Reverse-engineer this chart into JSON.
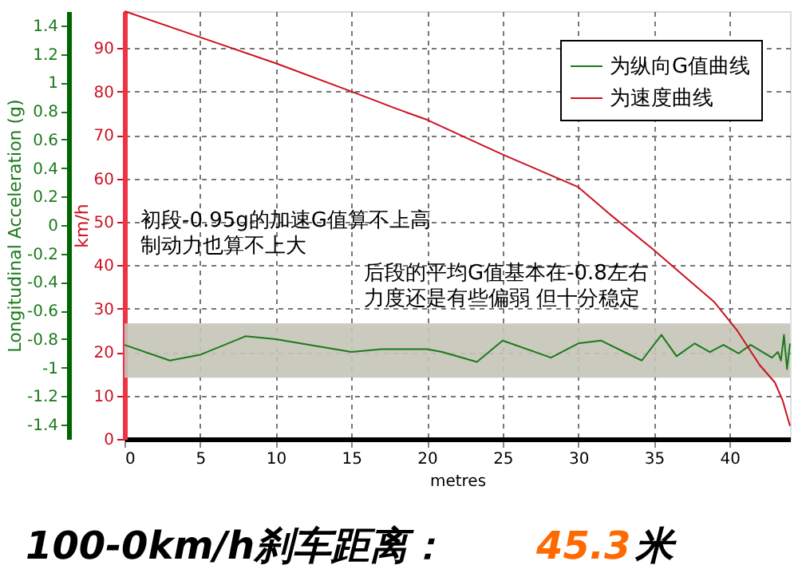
{
  "chart_data": {
    "type": "line",
    "xlabel": "metres",
    "ylabel": "Longitudinal Acceleration (g)",
    "y2label": "km/h",
    "xlim": [
      0,
      44
    ],
    "xticks": [
      0,
      5,
      10,
      15,
      20,
      25,
      30,
      35,
      40
    ],
    "ylim": [
      -1.5,
      1.5
    ],
    "yticks": [
      -1.4,
      -1.2,
      -1,
      -0.8,
      -0.6,
      -0.4,
      -0.2,
      0,
      0.2,
      0.4,
      0.6,
      0.8,
      1,
      1.2,
      1.4
    ],
    "y2lim": [
      0,
      98.5
    ],
    "y2ticks": [
      0,
      10,
      20,
      30,
      40,
      50,
      60,
      70,
      80,
      90
    ],
    "grid": true,
    "legend": "top right",
    "marker": "none",
    "line_style": "solid",
    "series": [
      {
        "name": "为纵向G值曲线",
        "color": "#1a7a1a",
        "x": [
          0,
          3,
          5,
          8,
          10,
          15,
          17,
          20,
          21,
          23.3,
          25,
          28.2,
          30,
          31.5,
          34.2,
          35.5,
          36.5,
          37.7,
          38.7,
          39.6,
          40.6,
          41.4,
          42.8,
          43.2,
          43.4,
          43.6,
          43.8,
          44
        ],
        "values": [
          -0.84,
          -0.95,
          -0.91,
          -0.78,
          -0.8,
          -0.89,
          -0.87,
          -0.87,
          -0.89,
          -0.96,
          -0.81,
          -0.93,
          -0.83,
          -0.81,
          -0.95,
          -0.77,
          -0.92,
          -0.83,
          -0.89,
          -0.84,
          -0.9,
          -0.84,
          -0.93,
          -0.89,
          -0.95,
          -0.77,
          -1.01,
          -0.83
        ]
      },
      {
        "name": "为速度曲线",
        "color": "#cc1122",
        "axis": "y2",
        "x": [
          0,
          5,
          10,
          15,
          18,
          20,
          25,
          30,
          32,
          35,
          37,
          39,
          40.5,
          42,
          43,
          43.5,
          44
        ],
        "values": [
          98.5,
          92.5,
          86.5,
          80,
          76,
          73.5,
          65.5,
          58,
          52,
          43.5,
          37.5,
          31.5,
          25,
          17,
          13,
          9,
          3
        ]
      }
    ],
    "bands": [
      {
        "axis": "y",
        "from": -1.07,
        "to": -0.69,
        "color": "#c4c4b8"
      }
    ],
    "annotations": [
      "初段-0.95g的加速G值算不上高",
      "制动力也算不上大",
      "后段的平均G值基本在-0.8左右",
      "力度还是有些偏弱  但十分稳定",
      "100-0km/h刹车距离：",
      "45.3",
      "米"
    ]
  }
}
